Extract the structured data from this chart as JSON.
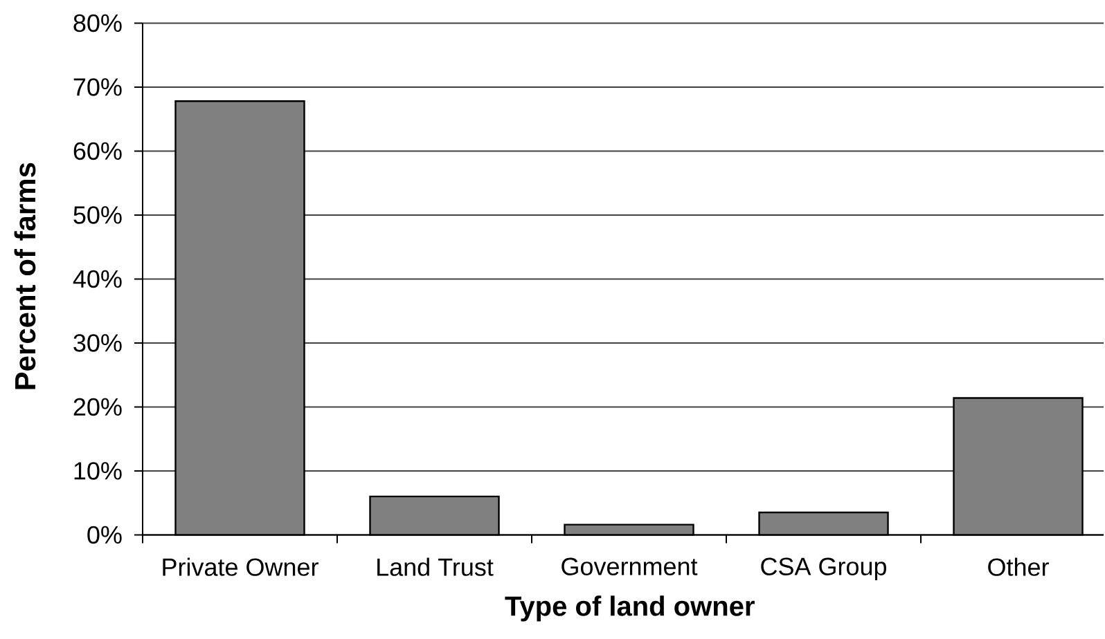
{
  "chart_data": {
    "type": "bar",
    "xlabel": "Type of land owner",
    "ylabel": "Percent of farms",
    "categories": [
      "Private Owner",
      "Land Trust",
      "Government",
      "CSA Group",
      "Other"
    ],
    "values": [
      67.8,
      6,
      1.6,
      3.5,
      21.4
    ],
    "color": "#808080",
    "ylim": [
      0,
      80
    ],
    "yticks": [
      {
        "value": 0,
        "label": "0%"
      },
      {
        "value": 10,
        "label": "10%"
      },
      {
        "value": 20,
        "label": "20%"
      },
      {
        "value": 30,
        "label": "30%"
      },
      {
        "value": 40,
        "label": "40%"
      },
      {
        "value": 50,
        "label": "50%"
      },
      {
        "value": 60,
        "label": "60%"
      },
      {
        "value": 70,
        "label": "70%"
      },
      {
        "value": 80,
        "label": "80%"
      }
    ],
    "grid": "y"
  }
}
